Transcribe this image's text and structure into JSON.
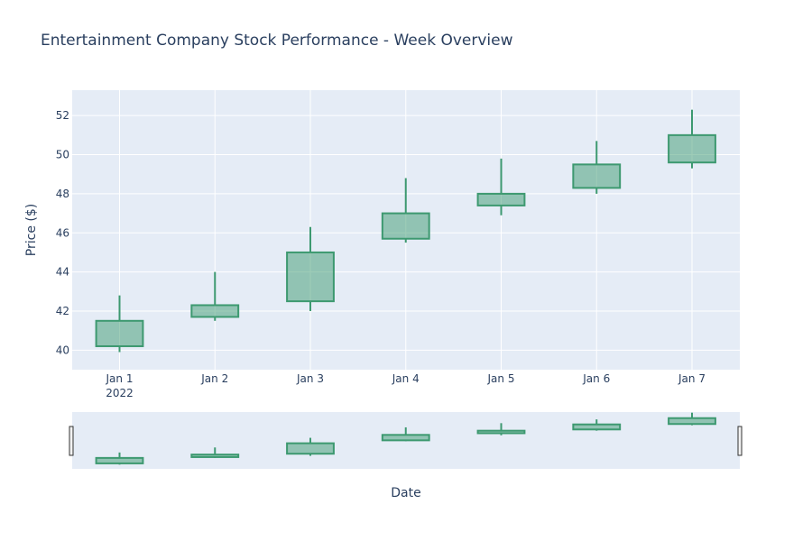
{
  "chart_data": {
    "type": "candlestick",
    "title": "Entertainment Company Stock Performance - Week Overview",
    "xlabel": "Date",
    "ylabel": "Price ($)",
    "x": [
      "Jan 1",
      "Jan 2",
      "Jan 3",
      "Jan 4",
      "Jan 5",
      "Jan 6",
      "Jan 7"
    ],
    "x_year_label": "2022",
    "open": [
      40.2,
      41.7,
      42.5,
      45.7,
      47.4,
      48.3,
      49.6
    ],
    "high": [
      42.8,
      44.0,
      46.3,
      48.8,
      49.8,
      50.7,
      52.3
    ],
    "low": [
      39.9,
      41.5,
      42.0,
      45.5,
      46.9,
      48.0,
      49.3
    ],
    "close": [
      41.5,
      42.3,
      45.0,
      47.0,
      48.0,
      49.5,
      51.0
    ],
    "ylim": [
      39.0,
      53.3
    ],
    "y_ticks": [
      40,
      42,
      44,
      46,
      48,
      50,
      52
    ],
    "grid": true,
    "rangeslider": true,
    "colors": {
      "increasing_line": "#3D9970",
      "increasing_fill": "rgba(61,153,112,0.5)",
      "plot_bg": "#E5ECF6",
      "grid": "#ffffff",
      "text": "#2a3f5f"
    }
  }
}
